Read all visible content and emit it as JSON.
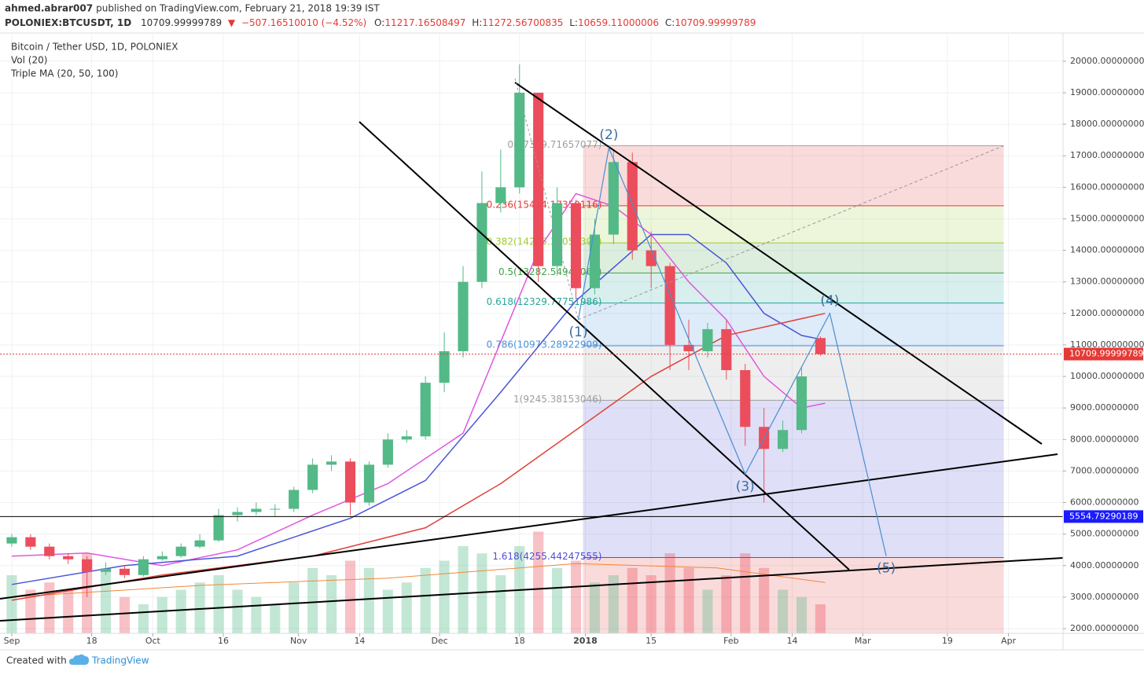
{
  "header": {
    "author": "ahmed.abrar007",
    "published": "published on TradingView.com, February 21, 2018 19:39 IST",
    "symbol": "POLONIEX:BTCUSDT, 1D",
    "last": "10709.99999789",
    "arrow": "▼",
    "change": "−507.16510010 (−4.52%)",
    "ohlc": [
      {
        "label": "O:",
        "value": "11217.16508497"
      },
      {
        "label": "H:",
        "value": "11272.56700835"
      },
      {
        "label": "L:",
        "value": "10659.11000006"
      },
      {
        "label": "C:",
        "value": "10709.99999789"
      }
    ]
  },
  "legend": [
    "Bitcoin / Tether USD, 1D, POLONIEX",
    "Vol (20)",
    "Triple MA (20, 50, 100)"
  ],
  "footer": {
    "created": "Created with",
    "brand": "TradingView"
  },
  "chart_data": {
    "type": "candlestick",
    "up_color": "#53b987",
    "down_color": "#eb4d5c",
    "grid": true,
    "xlim": [
      -2.5,
      223.6
    ],
    "ylim": [
      1850,
      20870
    ],
    "xticks": [
      {
        "value": 0,
        "label": "Sep"
      },
      {
        "value": 17,
        "label": "18"
      },
      {
        "value": 30,
        "label": "Oct"
      },
      {
        "value": 45,
        "label": "16"
      },
      {
        "value": 61,
        "label": "Nov"
      },
      {
        "value": 74,
        "label": "14"
      },
      {
        "value": 91,
        "label": "Dec"
      },
      {
        "value": 108,
        "label": "18"
      },
      {
        "value": 122,
        "label": "2018"
      },
      {
        "value": 136,
        "label": "15"
      },
      {
        "value": 153,
        "label": "Feb"
      },
      {
        "value": 166,
        "label": "14"
      },
      {
        "value": 181,
        "label": "Mar"
      },
      {
        "value": 199,
        "label": "19"
      },
      {
        "value": 212,
        "label": "Apr"
      }
    ],
    "yticks": [
      {
        "value": 2000,
        "label": "2000.00000000"
      },
      {
        "value": 3000,
        "label": "3000.00000000"
      },
      {
        "value": 4000,
        "label": "4000.00000000"
      },
      {
        "value": 5000,
        "label": "5000.00000000"
      },
      {
        "value": 6000,
        "label": "6000.00000000"
      },
      {
        "value": 7000,
        "label": "7000.00000000"
      },
      {
        "value": 8000,
        "label": "8000.00000000"
      },
      {
        "value": 9000,
        "label": "9000.00000000"
      },
      {
        "value": 10000,
        "label": "10000.00000000"
      },
      {
        "value": 11000,
        "label": "11000.00000000"
      },
      {
        "value": 12000,
        "label": "12000.00000000"
      },
      {
        "value": 13000,
        "label": "13000.00000000"
      },
      {
        "value": 14000,
        "label": "14000.00000000"
      },
      {
        "value": 15000,
        "label": "15000.00000000"
      },
      {
        "value": 16000,
        "label": "16000.00000000"
      },
      {
        "value": 17000,
        "label": "17000.00000000"
      },
      {
        "value": 18000,
        "label": "18000.00000000"
      },
      {
        "value": 19000,
        "label": "19000.00000000"
      },
      {
        "value": 20000,
        "label": "20000.00000000"
      }
    ],
    "x": [
      0,
      4,
      8,
      12,
      16,
      20,
      24,
      28,
      32,
      36,
      40,
      44,
      48,
      52,
      56,
      60,
      64,
      68,
      72,
      76,
      80,
      84,
      88,
      92,
      96,
      100,
      104,
      108,
      112,
      116,
      120,
      124,
      128,
      132,
      136,
      140,
      144,
      148,
      152,
      156,
      160,
      164,
      168,
      172
    ],
    "open": [
      4700,
      4900,
      4600,
      4300,
      4200,
      3800,
      3900,
      3700,
      4200,
      4300,
      4600,
      4800,
      5600,
      5700,
      5800,
      5800,
      6400,
      7200,
      7300,
      6000,
      7200,
      8000,
      8100,
      9800,
      10800,
      13000,
      15500,
      16000,
      19000,
      13500,
      15500,
      12800,
      14500,
      16800,
      14000,
      13500,
      11000,
      10800,
      11500,
      10200,
      8400,
      7700,
      8300,
      11217.16508497
    ],
    "high": [
      5000,
      5000,
      4700,
      4400,
      4300,
      4100,
      4000,
      4300,
      4450,
      4700,
      5000,
      5800,
      5850,
      6000,
      5950,
      6500,
      7400,
      7500,
      7400,
      7300,
      8200,
      8300,
      10000,
      11400,
      13500,
      16500,
      17200,
      19900,
      19000,
      16000,
      15600,
      15000,
      17200,
      17100,
      14600,
      13600,
      11800,
      11700,
      11800,
      10400,
      9000,
      8600,
      10300,
      11272.56700835
    ],
    "low": [
      4600,
      4500,
      4200,
      4050,
      3000,
      3700,
      3600,
      3650,
      4150,
      4250,
      4550,
      4750,
      5400,
      5600,
      5550,
      5700,
      6300,
      7000,
      5600,
      5900,
      7100,
      7900,
      8000,
      9500,
      10600,
      12800,
      15200,
      15800,
      13000,
      13200,
      12500,
      12600,
      14200,
      13700,
      12800,
      10200,
      10200,
      10600,
      9900,
      7800,
      6000,
      7600,
      8200,
      10659.11000006
    ],
    "close": [
      4900,
      4600,
      4300,
      4200,
      3800,
      3900,
      3700,
      4200,
      4300,
      4600,
      4800,
      5600,
      5700,
      5800,
      5800,
      6400,
      7200,
      7300,
      6000,
      7200,
      8000,
      8100,
      9800,
      10800,
      13000,
      15500,
      16000,
      19000,
      13500,
      15500,
      12800,
      14500,
      16800,
      14000,
      13500,
      11000,
      10800,
      11500,
      10200,
      8400,
      7700,
      8300,
      10000,
      10709.99999789
    ],
    "volume": [
      40,
      30,
      35,
      30,
      55,
      45,
      25,
      20,
      25,
      30,
      35,
      40,
      30,
      25,
      20,
      35,
      45,
      40,
      50,
      45,
      30,
      35,
      45,
      50,
      60,
      55,
      40,
      60,
      70,
      45,
      50,
      35,
      40,
      45,
      40,
      55,
      45,
      30,
      40,
      55,
      45,
      30,
      25,
      20
    ],
    "volume_ma": {
      "color": "#f0883a",
      "x": [
        0,
        40,
        80,
        120,
        150,
        173
      ],
      "values": [
        25,
        33,
        38,
        48,
        45,
        35
      ]
    },
    "moving_averages": [
      {
        "color": "#e056e0",
        "x": [
          0,
          16,
          32,
          48,
          64,
          80,
          96,
          112,
          120,
          128,
          136,
          144,
          152,
          160,
          168,
          173
        ],
        "values": [
          4300,
          4400,
          4000,
          4500,
          5600,
          6600,
          8200,
          14000,
          15800,
          15400,
          14500,
          13000,
          11800,
          10000,
          9000,
          9150
        ]
      },
      {
        "color": "#4a54d8",
        "x": [
          0,
          24,
          48,
          72,
          88,
          104,
          120,
          136,
          144,
          152,
          160,
          168,
          173
        ],
        "values": [
          3400,
          4000,
          4300,
          5500,
          6700,
          9500,
          12400,
          14500,
          14500,
          13600,
          12000,
          11300,
          11150
        ]
      },
      {
        "color": "#e0413a",
        "x": [
          0,
          32,
          64,
          88,
          104,
          120,
          136,
          152,
          164,
          173
        ],
        "values": [
          2900,
          3700,
          4300,
          5200,
          6600,
          8300,
          10000,
          11300,
          11700,
          12000
        ]
      }
    ],
    "fib": {
      "x_start": 121.5,
      "x_end": 211,
      "levels": [
        {
          "label": "0(17319.71657077)",
          "value": 17319.71657077,
          "color": "#9e9e9e"
        },
        {
          "label": "0.236(15414.17350116)",
          "value": 15414.17350116,
          "color": "#e53935"
        },
        {
          "label": "0.382(14235.32058392)",
          "value": 14235.32058392,
          "color": "#9ccc35"
        },
        {
          "label": "0.5(13282.54945061)",
          "value": 13282.54945061,
          "color": "#43a047"
        },
        {
          "label": "0.618(12329.77751986)",
          "value": 12329.77751986,
          "color": "#26a69a"
        },
        {
          "label": "0.786(10973.28922909)",
          "value": 10973.28922909,
          "color": "#4a90d9"
        },
        {
          "label": "1(9245.38153046)",
          "value": 9245.38153046,
          "color": "#9e9e9e"
        },
        {
          "label": "1.618(4255.44247555)",
          "value": 4255.44247555,
          "color": "#5050d0"
        }
      ]
    },
    "waves": [
      {
        "label": "(1)",
        "x": 120.5,
        "y": 11800
      },
      {
        "label": "(2)",
        "x": 127,
        "y": 17250
      },
      {
        "label": "(3)",
        "x": 156,
        "y": 6900
      },
      {
        "label": "(4)",
        "x": 174,
        "y": 12000
      },
      {
        "label": "(5)",
        "x": 186,
        "y": 4300
      }
    ],
    "price_labels": [
      {
        "value": 10709.99999789,
        "color": "#e53935"
      },
      {
        "value": 5554.79290189,
        "color": "#1a1aff"
      }
    ]
  }
}
